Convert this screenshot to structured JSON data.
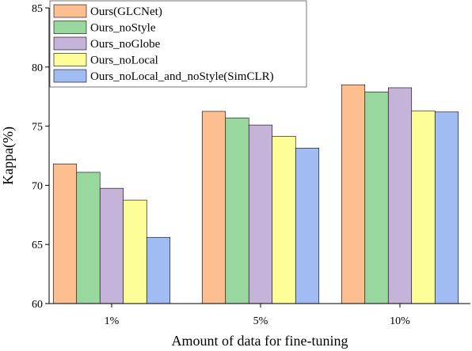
{
  "chart_data": {
    "type": "bar",
    "xlabel": "Amount of data for fine-tuning",
    "ylabel": "Kappa(%)",
    "ylim": [
      60,
      85
    ],
    "yticks": [
      60,
      65,
      70,
      75,
      80,
      85
    ],
    "categories": [
      "1%",
      "5%",
      "10%"
    ],
    "grid": false,
    "legend_position": "top-left",
    "series": [
      {
        "name": "Ours(GLCNet)",
        "color": "#FDBF8F",
        "values": [
          71.8,
          76.25,
          78.5
        ]
      },
      {
        "name": "Ours_noStyle",
        "color": "#98D89E",
        "values": [
          71.1,
          75.7,
          77.9
        ]
      },
      {
        "name": "Ours_noGlobe",
        "color": "#C5B3D9",
        "values": [
          69.75,
          75.1,
          78.25
        ]
      },
      {
        "name": "Ours_noLocal",
        "color": "#FEFE99",
        "values": [
          68.75,
          74.15,
          76.3
        ]
      },
      {
        "name": "Ours_noLocal_and_noStyle(SimCLR)",
        "color": "#A0BCF2",
        "values": [
          65.6,
          73.15,
          76.2
        ]
      }
    ]
  }
}
